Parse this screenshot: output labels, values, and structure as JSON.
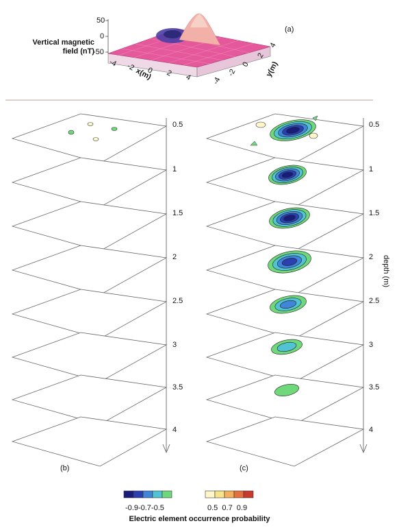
{
  "panel_a": {
    "label": "(a)",
    "zlabel_line1": "Vertical magnetic",
    "zlabel_line2": "field (nT)",
    "z_ticks": [
      "50",
      "0",
      "-50"
    ],
    "xlabel": "x(m)",
    "x_ticks": [
      "-4",
      "-2",
      "0",
      "2",
      "4"
    ],
    "ylabel": "y(m)",
    "y_ticks": [
      "4",
      "2",
      "0",
      "-2",
      "-4"
    ],
    "colors": {
      "surface": "#e6589c",
      "positive_peak": "#f3b0a8",
      "negative_peak": "#4d3fa6"
    }
  },
  "panel_b": {
    "label": "(b)"
  },
  "panel_c": {
    "label": "(c)"
  },
  "depth_axis": {
    "title": "depth (m)",
    "ticks": [
      "0.5",
      "1",
      "1.5",
      "2",
      "2.5",
      "3",
      "3.5",
      "4"
    ]
  },
  "colorbar": {
    "title": "Electric element occurrence probability",
    "neg_labels": "-0.9-0.7-0.5",
    "pos_labels": "0.5  0.7  0.9",
    "neg_colors": [
      "#1a1c7a",
      "#2b3fb0",
      "#3f86d8",
      "#52c3d2",
      "#6fd87a"
    ],
    "pos_colors": [
      "#fff7c8",
      "#f6e48a",
      "#f4b05a",
      "#e4703c",
      "#c73a2c"
    ]
  }
}
